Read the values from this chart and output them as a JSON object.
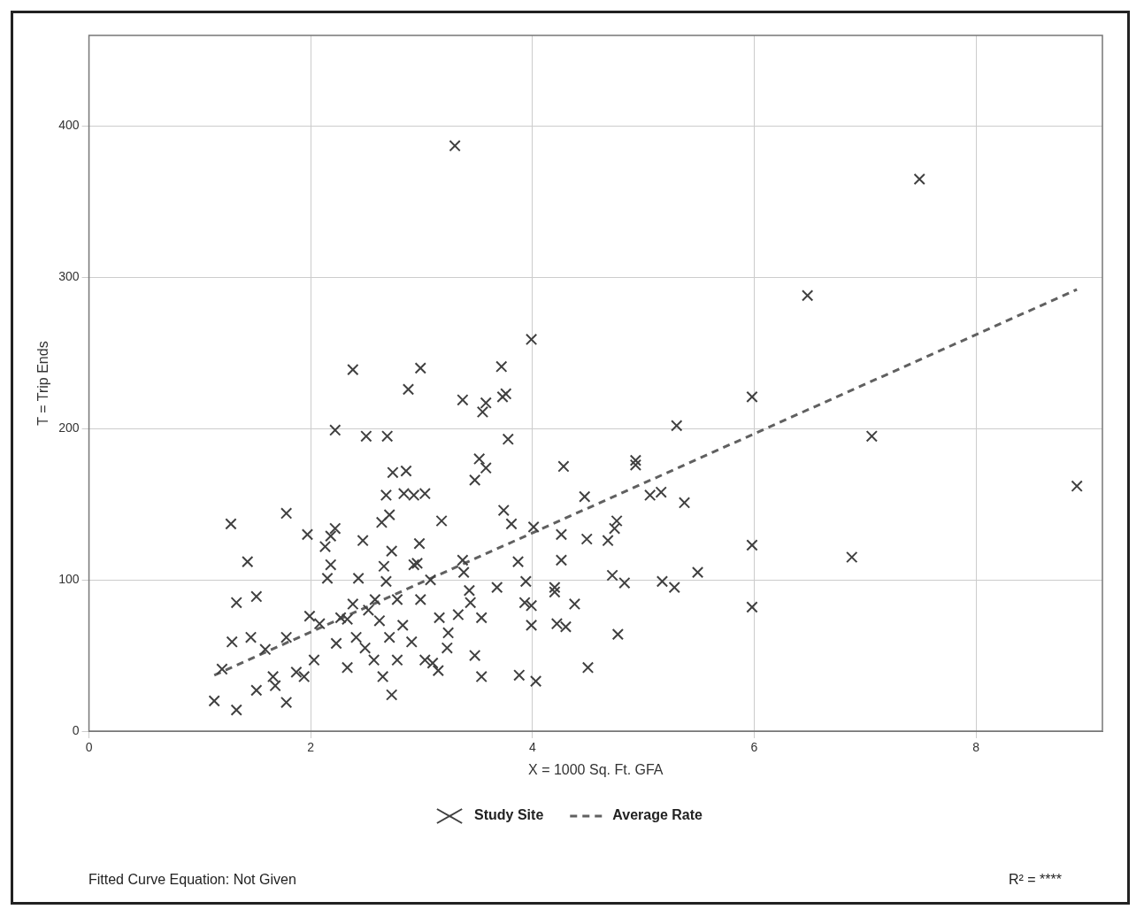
{
  "chart_data": {
    "type": "scatter",
    "xlabel": "X = 1000 Sq. Ft. GFA",
    "ylabel": "T = Trip Ends",
    "xlim": [
      0,
      9.14
    ],
    "ylim": [
      0,
      460
    ],
    "xticks": [
      0,
      2,
      4,
      6,
      8
    ],
    "yticks": [
      0,
      100,
      200,
      300,
      400
    ],
    "grid": true,
    "legend": "bottom",
    "annotations": [
      "Fitted Curve Equation: Not Given",
      "R² = ****"
    ],
    "series": [
      {
        "name": "Study Site",
        "marker": "cross",
        "color": "#404040",
        "x": [
          3.3,
          7.49,
          6.48,
          8.91,
          7.06,
          6.88,
          5.98,
          5.98,
          5.98,
          5.49,
          5.37,
          5.3,
          5.28,
          5.17,
          5.16,
          5.06,
          4.93,
          4.93,
          4.83,
          4.76,
          4.74,
          4.72,
          4.68,
          4.77,
          4.49,
          4.47,
          4.5,
          4.38,
          4.28,
          4.26,
          4.26,
          4.3,
          4.22,
          4.2,
          4.2,
          3.99,
          4.01,
          3.99,
          3.99,
          4.03,
          3.88,
          3.93,
          3.94,
          3.87,
          3.72,
          3.73,
          3.76,
          3.78,
          3.74,
          3.81,
          3.68,
          3.58,
          3.55,
          3.37,
          3.52,
          3.58,
          3.48,
          3.54,
          3.54,
          3.48,
          3.37,
          3.38,
          3.43,
          3.44,
          3.33,
          3.24,
          3.18,
          2.99,
          2.88,
          2.86,
          2.84,
          2.93,
          3.03,
          2.98,
          2.96,
          2.99,
          2.93,
          2.91,
          3.03,
          3.1,
          3.15,
          3.23,
          3.16,
          3.08,
          2.69,
          2.5,
          2.74,
          2.68,
          2.71,
          2.64,
          2.47,
          2.73,
          2.66,
          2.68,
          2.58,
          2.52,
          2.62,
          2.71,
          2.49,
          2.73,
          2.65,
          2.57,
          2.78,
          2.83,
          2.78,
          2.38,
          2.22,
          2.43,
          2.38,
          2.33,
          2.27,
          2.41,
          2.33,
          2.23,
          2.22,
          2.18,
          2.13,
          2.18,
          2.15,
          1.97,
          1.99,
          2.08,
          2.03,
          1.94,
          1.87,
          1.78,
          1.78,
          1.66,
          1.78,
          1.68,
          1.51,
          1.43,
          1.33,
          1.28,
          1.29,
          1.46,
          1.51,
          1.33,
          1.13,
          1.2,
          1.59
        ],
        "values": [
          387,
          365,
          288,
          162,
          195,
          115,
          221,
          123,
          82,
          105,
          151,
          202,
          95,
          99,
          158,
          156,
          179,
          176,
          98,
          139,
          134,
          103,
          126,
          64,
          127,
          155,
          42,
          84,
          175,
          130,
          113,
          69,
          71,
          92,
          95,
          259,
          135,
          83,
          70,
          33,
          37,
          85,
          99,
          112,
          241,
          221,
          223,
          193,
          146,
          137,
          95,
          217,
          211,
          219,
          180,
          174,
          166,
          75,
          36,
          50,
          113,
          105,
          93,
          85,
          77,
          65,
          139,
          240,
          226,
          172,
          157,
          156,
          157,
          124,
          111,
          87,
          110,
          59,
          47,
          45,
          40,
          55,
          75,
          100,
          195,
          195,
          171,
          156,
          143,
          138,
          126,
          119,
          109,
          99,
          87,
          80,
          73,
          62,
          55,
          24,
          36,
          47,
          47,
          70,
          87,
          239,
          199,
          101,
          84,
          74,
          75,
          62,
          42,
          58,
          134,
          129,
          122,
          110,
          101,
          130,
          76,
          71,
          47,
          36,
          39,
          144,
          62,
          36,
          19,
          30,
          89,
          112,
          85,
          137,
          59,
          62,
          27,
          14,
          20,
          41,
          54
        ]
      },
      {
        "name": "Average Rate",
        "type": "line",
        "line_style": "dashed",
        "color": "#606060",
        "x": [
          1.13,
          8.91
        ],
        "values": [
          37,
          292
        ]
      }
    ]
  }
}
